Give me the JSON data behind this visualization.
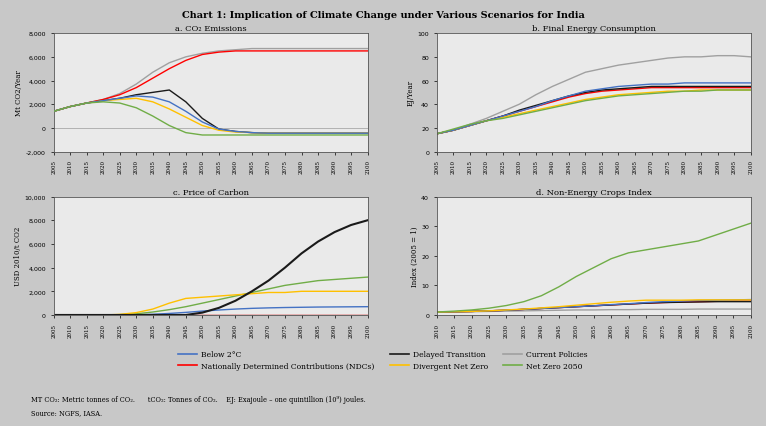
{
  "title": "Chart 1: Implication of Climate Change under Various Scenarios for India",
  "subtitle_a": "a. CO₂ Emissions",
  "subtitle_b": "b. Final Energy Consumption",
  "subtitle_c": "c. Price of Carbon",
  "subtitle_d": "d. Non-Energy Crops Index",
  "ylabel_a": "Mt CO2/Year",
  "ylabel_b": "EJ/Year",
  "ylabel_c": "USD 2010/t CO2",
  "ylabel_d": "Index (2005 = 1)",
  "footnote_line1": "MT CO₂: Metric tonnes of CO₂.      tCO₂: Tonnes of CO₂.    EJ: Exajoule – one quintillion (10⁹) joules.",
  "footnote_line2": "Source: NGFS, IASA.",
  "colors": {
    "below2c": "#4472C4",
    "ndc": "#FF0000",
    "delayed": "#1A1A1A",
    "divergent": "#FFC000",
    "current": "#A0A0A0",
    "netzero": "#70AD47"
  },
  "legend_labels": [
    "Below 2°C",
    "Nationally Determined Contributions (NDCs)",
    "Delayed Transition",
    "Divergent Net Zero",
    "Current Policies",
    "Net Zero 2050"
  ],
  "years_a": [
    2005,
    2010,
    2015,
    2020,
    2025,
    2030,
    2035,
    2040,
    2045,
    2050,
    2055,
    2060,
    2065,
    2070,
    2075,
    2080,
    2085,
    2090,
    2095,
    2100
  ],
  "a_below2c": [
    1400,
    1800,
    2100,
    2300,
    2500,
    2700,
    2600,
    2200,
    1400,
    500,
    -100,
    -300,
    -400,
    -450,
    -450,
    -450,
    -450,
    -450,
    -450,
    -450
  ],
  "a_ndc": [
    1400,
    1800,
    2100,
    2400,
    2800,
    3400,
    4200,
    5000,
    5700,
    6200,
    6400,
    6500,
    6500,
    6500,
    6500,
    6500,
    6500,
    6500,
    6500,
    6500
  ],
  "a_delayed": [
    1400,
    1800,
    2100,
    2300,
    2500,
    2800,
    3000,
    3200,
    2200,
    800,
    -100,
    -300,
    -400,
    -450,
    -450,
    -450,
    -450,
    -450,
    -450,
    -450
  ],
  "a_divergent": [
    1400,
    1800,
    2100,
    2300,
    2400,
    2500,
    2200,
    1600,
    900,
    200,
    -200,
    -350,
    -400,
    -450,
    -450,
    -450,
    -450,
    -450,
    -450,
    -450
  ],
  "a_current": [
    1400,
    1800,
    2100,
    2400,
    2900,
    3700,
    4700,
    5500,
    6000,
    6300,
    6500,
    6600,
    6700,
    6700,
    6700,
    6700,
    6700,
    6700,
    6700,
    6700
  ],
  "a_netzero": [
    1400,
    1800,
    2100,
    2200,
    2100,
    1700,
    1000,
    200,
    -400,
    -600,
    -600,
    -600,
    -600,
    -600,
    -600,
    -600,
    -600,
    -600,
    -600,
    -600
  ],
  "years_b": [
    2005,
    2010,
    2015,
    2020,
    2025,
    2030,
    2035,
    2040,
    2045,
    2050,
    2055,
    2060,
    2065,
    2070,
    2075,
    2080,
    2085,
    2090,
    2095,
    2100
  ],
  "b_below2c": [
    15,
    18,
    22,
    26,
    30,
    34,
    38,
    43,
    47,
    51,
    53,
    55,
    56,
    57,
    57,
    58,
    58,
    58,
    58,
    58
  ],
  "b_ndc": [
    15,
    18,
    22,
    26,
    30,
    34,
    38,
    42,
    46,
    49,
    51,
    52,
    53,
    54,
    54,
    54,
    54,
    54,
    54,
    54
  ],
  "b_delayed": [
    15,
    18,
    22,
    26,
    30,
    35,
    39,
    43,
    47,
    50,
    52,
    53,
    54,
    55,
    55,
    55,
    55,
    55,
    55,
    55
  ],
  "b_divergent": [
    15,
    18,
    22,
    26,
    29,
    32,
    35,
    38,
    41,
    44,
    46,
    48,
    49,
    50,
    51,
    51,
    52,
    52,
    52,
    52
  ],
  "b_current": [
    15,
    18,
    23,
    28,
    34,
    40,
    48,
    55,
    61,
    67,
    70,
    73,
    75,
    77,
    79,
    80,
    80,
    81,
    81,
    80
  ],
  "b_netzero": [
    15,
    19,
    23,
    26,
    28,
    31,
    34,
    37,
    40,
    43,
    45,
    47,
    48,
    49,
    50,
    51,
    51,
    52,
    52,
    52
  ],
  "years_c": [
    2005,
    2010,
    2015,
    2020,
    2025,
    2030,
    2035,
    2040,
    2045,
    2050,
    2055,
    2060,
    2065,
    2070,
    2075,
    2080,
    2085,
    2090,
    2095,
    2100
  ],
  "c_below2c": [
    0,
    0,
    0,
    0,
    0,
    20,
    60,
    130,
    220,
    330,
    420,
    500,
    560,
    600,
    630,
    650,
    670,
    680,
    690,
    700
  ],
  "c_ndc": [
    0,
    0,
    0,
    0,
    0,
    0,
    0,
    0,
    0,
    0,
    0,
    0,
    0,
    0,
    0,
    0,
    0,
    0,
    0,
    0
  ],
  "c_delayed": [
    0,
    0,
    0,
    0,
    0,
    0,
    0,
    0,
    0,
    200,
    600,
    1200,
    2000,
    2900,
    4000,
    5200,
    6200,
    7000,
    7600,
    8000
  ],
  "c_divergent": [
    0,
    0,
    0,
    0,
    50,
    200,
    500,
    1000,
    1400,
    1500,
    1600,
    1700,
    1800,
    1900,
    1900,
    2000,
    2000,
    2000,
    2000,
    2000
  ],
  "c_current": [
    0,
    0,
    0,
    0,
    0,
    0,
    0,
    0,
    0,
    0,
    0,
    0,
    0,
    0,
    0,
    0,
    0,
    0,
    0,
    0
  ],
  "c_netzero": [
    0,
    0,
    0,
    0,
    30,
    100,
    250,
    450,
    700,
    1000,
    1300,
    1600,
    1900,
    2200,
    2500,
    2700,
    2900,
    3000,
    3100,
    3200
  ],
  "years_d": [
    2010,
    2015,
    2020,
    2025,
    2030,
    2035,
    2040,
    2045,
    2050,
    2055,
    2060,
    2065,
    2070,
    2075,
    2080,
    2085,
    2090,
    2095,
    2100
  ],
  "d_below2c": [
    1,
    1.1,
    1.2,
    1.4,
    1.6,
    1.9,
    2.2,
    2.5,
    2.8,
    3.1,
    3.5,
    3.8,
    4.2,
    4.5,
    4.7,
    4.9,
    5.0,
    5.1,
    5.2
  ],
  "d_ndc": [
    1,
    1.1,
    1.2,
    1.4,
    1.6,
    1.9,
    2.2,
    2.5,
    2.8,
    3.1,
    3.4,
    3.7,
    4.0,
    4.2,
    4.4,
    4.5,
    4.6,
    4.7,
    4.7
  ],
  "d_delayed": [
    1,
    1.1,
    1.2,
    1.4,
    1.6,
    1.9,
    2.2,
    2.5,
    2.8,
    3.1,
    3.4,
    3.7,
    4.0,
    4.2,
    4.3,
    4.4,
    4.5,
    4.5,
    4.5
  ],
  "d_divergent": [
    1,
    1.1,
    1.2,
    1.4,
    1.7,
    2.0,
    2.4,
    2.8,
    3.3,
    3.8,
    4.3,
    4.7,
    5.0,
    5.0,
    5.0,
    5.1,
    5.1,
    5.1,
    5.1
  ],
  "d_current": [
    1,
    1.1,
    1.1,
    1.2,
    1.3,
    1.4,
    1.5,
    1.6,
    1.7,
    1.7,
    1.8,
    1.8,
    1.9,
    1.9,
    1.9,
    2.0,
    2.0,
    2.0,
    2.0
  ],
  "d_netzero": [
    1,
    1.3,
    1.7,
    2.3,
    3.2,
    4.5,
    6.5,
    9.5,
    13,
    16,
    19,
    21,
    22,
    23,
    24,
    25,
    27,
    29,
    31
  ],
  "ylim_a": [
    -2000,
    8000
  ],
  "ylim_b": [
    0,
    100
  ],
  "ylim_c": [
    0,
    10000
  ],
  "ylim_d": [
    0,
    40
  ],
  "yticks_a": [
    -2000,
    0,
    2000,
    4000,
    6000,
    8000
  ],
  "yticks_b": [
    0,
    20,
    40,
    60,
    80,
    100
  ],
  "yticks_c": [
    0,
    2000,
    4000,
    6000,
    8000,
    10000
  ],
  "yticks_d": [
    0,
    10,
    20,
    30,
    40
  ],
  "bg_color": "#C8C8C8",
  "panel_bg": "#EAEAEA"
}
